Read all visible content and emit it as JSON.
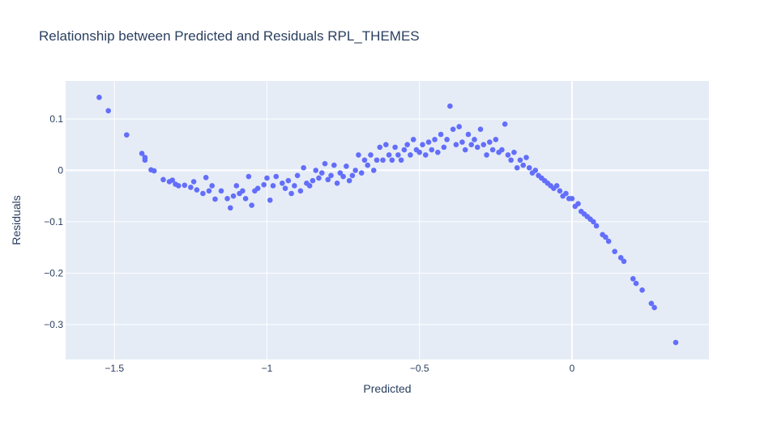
{
  "chart_data": {
    "type": "scatter",
    "title": "Relationship between Predicted and Residuals RPL_THEMES",
    "x_label": "Predicted",
    "y_label": "Residuals",
    "series": [
      {
        "color": "#636efa",
        "x": [
          -1.55,
          -1.52,
          -1.46,
          -1.41,
          -1.4,
          -1.4,
          -1.38,
          -1.37,
          -1.34,
          -1.32,
          -1.31,
          -1.3,
          -1.29,
          -1.27,
          -1.25,
          -1.24,
          -1.23,
          -1.21,
          -1.2,
          -1.19,
          -1.18,
          -1.17,
          -1.15,
          -1.13,
          -1.12,
          -1.11,
          -1.1,
          -1.09,
          -1.08,
          -1.07,
          -1.06,
          -1.05,
          -1.04,
          -1.03,
          -1.01,
          -1.0,
          -0.99,
          -0.98,
          -0.97,
          -0.95,
          -0.94,
          -0.93,
          -0.92,
          -0.91,
          -0.9,
          -0.89,
          -0.88,
          -0.87,
          -0.86,
          -0.85,
          -0.84,
          -0.83,
          -0.82,
          -0.81,
          -0.8,
          -0.79,
          -0.78,
          -0.77,
          -0.76,
          -0.75,
          -0.74,
          -0.73,
          -0.72,
          -0.71,
          -0.7,
          -0.69,
          -0.68,
          -0.67,
          -0.66,
          -0.65,
          -0.64,
          -0.63,
          -0.62,
          -0.61,
          -0.6,
          -0.59,
          -0.58,
          -0.57,
          -0.56,
          -0.55,
          -0.54,
          -0.53,
          -0.52,
          -0.51,
          -0.5,
          -0.49,
          -0.48,
          -0.47,
          -0.46,
          -0.45,
          -0.44,
          -0.43,
          -0.42,
          -0.41,
          -0.4,
          -0.39,
          -0.38,
          -0.37,
          -0.36,
          -0.35,
          -0.34,
          -0.33,
          -0.32,
          -0.31,
          -0.3,
          -0.29,
          -0.28,
          -0.27,
          -0.26,
          -0.25,
          -0.24,
          -0.23,
          -0.22,
          -0.21,
          -0.2,
          -0.19,
          -0.18,
          -0.17,
          -0.16,
          -0.15,
          -0.14,
          -0.13,
          -0.12,
          -0.11,
          -0.1,
          -0.09,
          -0.08,
          -0.07,
          -0.06,
          -0.05,
          -0.04,
          -0.03,
          -0.02,
          -0.01,
          0.0,
          0.01,
          0.02,
          0.03,
          0.04,
          0.05,
          0.06,
          0.07,
          0.08,
          0.1,
          0.11,
          0.12,
          0.14,
          0.16,
          0.17,
          0.2,
          0.21,
          0.23,
          0.26,
          0.27,
          0.34
        ],
        "y": [
          0.142,
          0.116,
          0.069,
          0.033,
          0.025,
          0.02,
          0.001,
          -0.001,
          -0.018,
          -0.022,
          -0.019,
          -0.027,
          -0.03,
          -0.029,
          -0.033,
          -0.022,
          -0.038,
          -0.045,
          -0.014,
          -0.04,
          -0.03,
          -0.056,
          -0.04,
          -0.055,
          -0.073,
          -0.05,
          -0.03,
          -0.045,
          -0.04,
          -0.055,
          -0.012,
          -0.068,
          -0.04,
          -0.035,
          -0.028,
          -0.015,
          -0.058,
          -0.03,
          -0.012,
          -0.025,
          -0.035,
          -0.02,
          -0.045,
          -0.03,
          -0.01,
          -0.04,
          0.005,
          -0.025,
          -0.03,
          -0.02,
          0.0,
          -0.015,
          -0.005,
          0.013,
          -0.018,
          -0.01,
          0.01,
          -0.025,
          -0.005,
          -0.012,
          0.008,
          -0.02,
          -0.01,
          0.0,
          0.03,
          -0.005,
          0.02,
          0.01,
          0.03,
          0.0,
          0.02,
          0.045,
          0.02,
          0.05,
          0.03,
          0.02,
          0.045,
          0.03,
          0.02,
          0.04,
          0.05,
          0.03,
          0.06,
          0.04,
          0.035,
          0.05,
          0.03,
          0.055,
          0.04,
          0.06,
          0.035,
          0.07,
          0.045,
          0.06,
          0.125,
          0.08,
          0.05,
          0.085,
          0.055,
          0.04,
          0.07,
          0.05,
          0.06,
          0.045,
          0.08,
          0.05,
          0.03,
          0.055,
          0.04,
          0.06,
          0.035,
          0.04,
          0.09,
          0.03,
          0.02,
          0.035,
          0.005,
          0.02,
          0.01,
          0.025,
          0.005,
          -0.005,
          0.0,
          -0.01,
          -0.015,
          -0.02,
          -0.025,
          -0.03,
          -0.035,
          -0.03,
          -0.04,
          -0.05,
          -0.045,
          -0.055,
          -0.055,
          -0.07,
          -0.065,
          -0.08,
          -0.085,
          -0.09,
          -0.095,
          -0.1,
          -0.108,
          -0.125,
          -0.13,
          -0.138,
          -0.158,
          -0.17,
          -0.177,
          -0.211,
          -0.22,
          -0.233,
          -0.259,
          -0.267,
          -0.335
        ]
      }
    ],
    "xlim": [
      -1.66,
      0.449
    ],
    "ylim": [
      -0.368,
      0.174
    ],
    "xticks": [
      {
        "value": -1.5,
        "label": "−1.5"
      },
      {
        "value": -1,
        "label": "−1"
      },
      {
        "value": -0.5,
        "label": "−0.5"
      },
      0
    ],
    "yticks": [
      {
        "value": -0.3,
        "label": "−0.3"
      },
      {
        "value": -0.2,
        "label": "−0.2"
      },
      {
        "value": -0.1,
        "label": "−0.1"
      },
      0,
      0.1
    ],
    "grid": true
  }
}
